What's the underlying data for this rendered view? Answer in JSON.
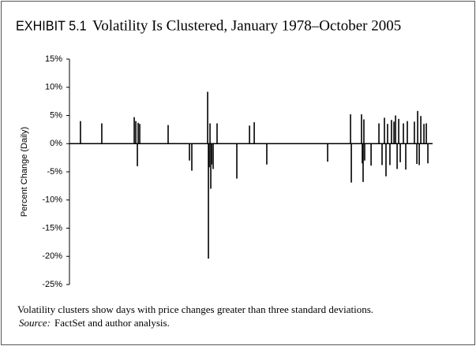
{
  "chart_data": {
    "type": "bar",
    "label": "EXHIBIT 5.1",
    "title": "Volatility Is Clustered, January 1978–October 2005",
    "y_label": "Percent Change (Daily)",
    "caption": "Volatility clusters show days with price changes greater than three standard deviations.",
    "source_label": "Source:",
    "source": "FactSet and author analysis.",
    "color": "#000000",
    "xlim": [
      1978,
      2005.75
    ],
    "ylim": [
      -25,
      15
    ],
    "yticks": [
      {
        "value": 15,
        "label": "15%"
      },
      {
        "value": 10,
        "label": "10%"
      },
      {
        "value": 5,
        "label": "5%"
      },
      {
        "value": 0,
        "label": "0%"
      },
      {
        "value": -5,
        "label": "-5%"
      },
      {
        "value": -10,
        "label": "-10%"
      },
      {
        "value": -15,
        "label": "-15%"
      },
      {
        "value": -20,
        "label": "-20%"
      },
      {
        "value": -25,
        "label": "-25%"
      }
    ],
    "x": [
      1978.84,
      1980.47,
      1982.95,
      1983.07,
      1983.19,
      1983.25,
      1983.37,
      1985.54,
      1987.17,
      1987.35,
      1988.56,
      1988.62,
      1988.68,
      1988.74,
      1988.8,
      1988.86,
      1988.98,
      1989.28,
      1990.79,
      1991.76,
      1992.12,
      1993.08,
      1997.73,
      1999.48,
      1999.54,
      2000.32,
      2000.38,
      2000.44,
      2000.5,
      2000.56,
      2001.05,
      2001.65,
      2001.89,
      2002.07,
      2002.19,
      2002.31,
      2002.49,
      2002.61,
      2002.8,
      2002.92,
      2003.04,
      2003.16,
      2003.28,
      2003.52,
      2003.7,
      2003.82,
      2004.36,
      2004.55,
      2004.61,
      2004.73,
      2004.85,
      2005.09,
      2005.27,
      2005.39
    ],
    "values": [
      4.0,
      3.6,
      4.7,
      4.0,
      -4.0,
      3.7,
      3.5,
      3.3,
      -3.0,
      -4.8,
      9.2,
      -20.4,
      -4.2,
      3.6,
      -8.0,
      -3.7,
      -4.5,
      3.6,
      -6.2,
      3.2,
      3.8,
      -3.7,
      -3.2,
      5.2,
      -6.9,
      5.2,
      -3.5,
      -6.8,
      4.3,
      -3.0,
      -3.9,
      3.6,
      -3.8,
      4.6,
      -5.8,
      3.5,
      -3.8,
      4.2,
      3.9,
      5.0,
      -4.5,
      4.4,
      -3.3,
      3.6,
      -4.6,
      4.0,
      3.9,
      -3.6,
      5.8,
      -3.8,
      4.9,
      3.5,
      3.6,
      -3.5
    ]
  }
}
